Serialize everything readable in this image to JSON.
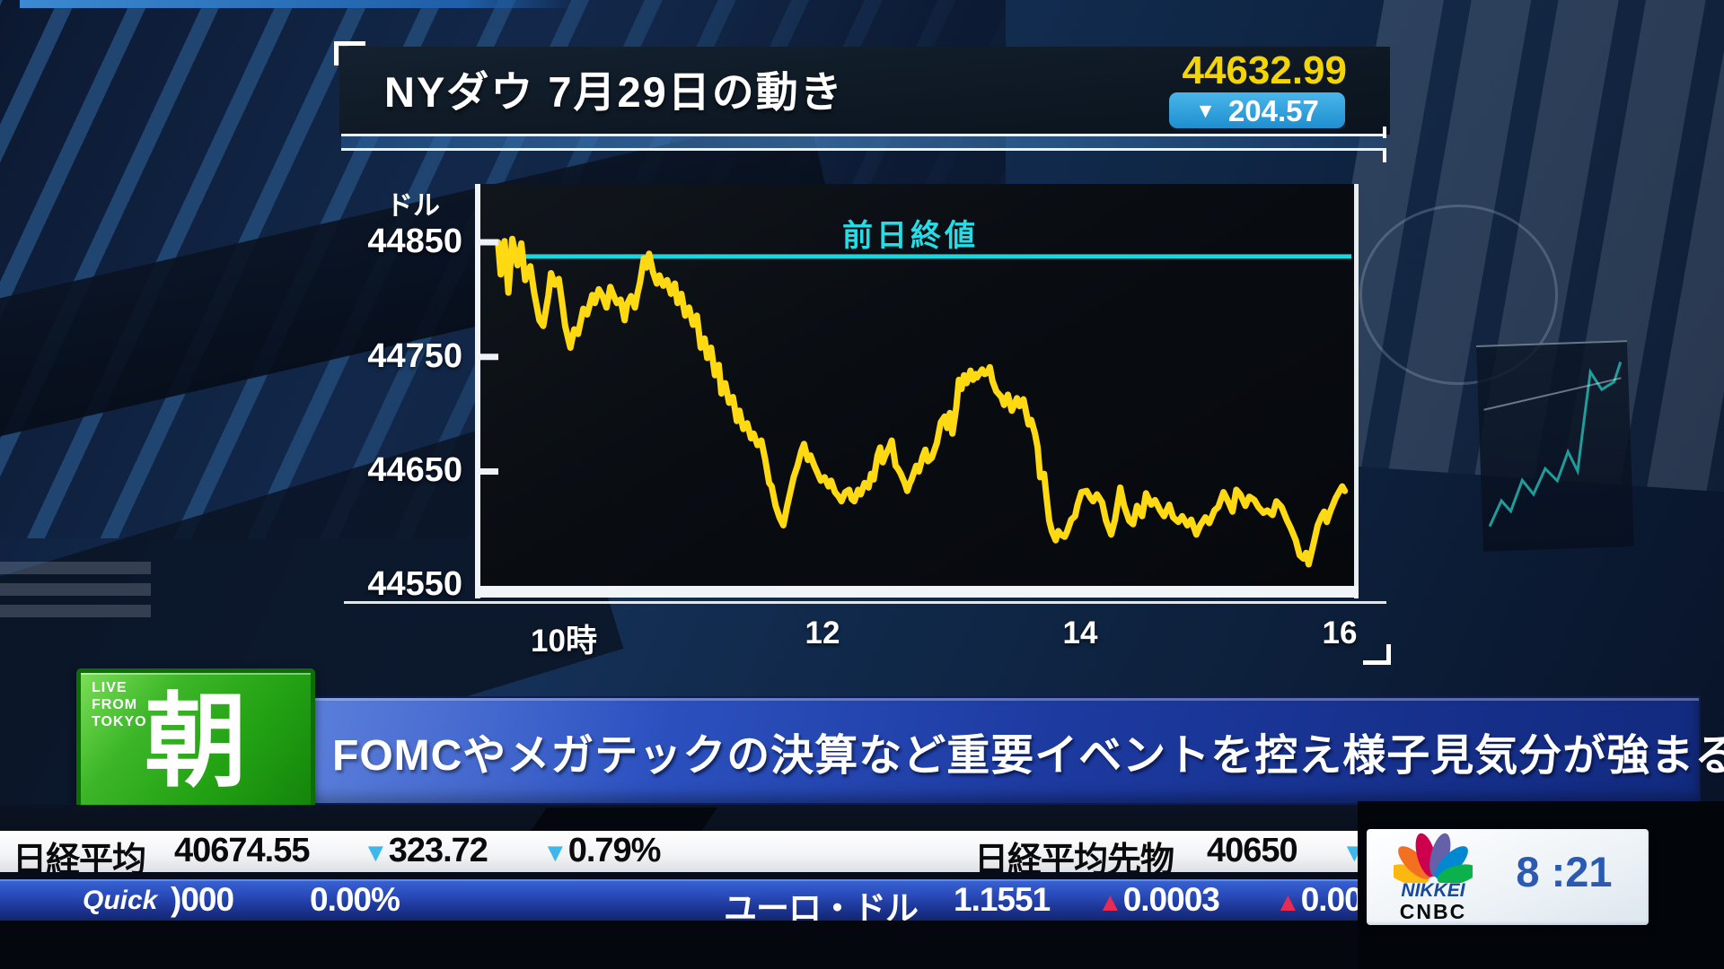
{
  "header": {
    "title": "NYダウ 7月29日の動き",
    "price": "44632.99",
    "change_arrow": "▼",
    "change_value": "204.57"
  },
  "chart": {
    "unit": "ドル",
    "prev_close_label": "前日終値",
    "y_ticks": [
      "44850",
      "44750",
      "44650",
      "44550"
    ],
    "x_ticks": [
      "10時",
      "12",
      "14",
      "16"
    ]
  },
  "chart_data": {
    "type": "line",
    "title": "NYダウ 7月29日の動き",
    "ylabel": "ドル",
    "x_unit": "hour_of_day",
    "xlim": [
      9.5,
      16.08
    ],
    "ylim": [
      44550,
      44870
    ],
    "x_tick_values": [
      10,
      12,
      14,
      16
    ],
    "x_tick_labels": [
      "10時",
      "12",
      "14",
      "16"
    ],
    "y_tick_values": [
      44850,
      44750,
      44650,
      44550
    ],
    "prev_close": 44837.56,
    "last_price": 44632.99,
    "change": -204.57,
    "grid": false,
    "series": [
      {
        "name": "NYダウ",
        "points": [
          [
            9.49,
            44850
          ],
          [
            9.51,
            44822
          ],
          [
            9.54,
            44851
          ],
          [
            9.57,
            44806
          ],
          [
            9.6,
            44853
          ],
          [
            9.64,
            44830
          ],
          [
            9.67,
            44849
          ],
          [
            9.7,
            44817
          ],
          [
            9.74,
            44829
          ],
          [
            9.77,
            44806
          ],
          [
            9.81,
            44782
          ],
          [
            9.84,
            44777
          ],
          [
            9.88,
            44804
          ],
          [
            9.9,
            44823
          ],
          [
            9.93,
            44813
          ],
          [
            9.96,
            44818
          ],
          [
            9.99,
            44794
          ],
          [
            10.01,
            44777
          ],
          [
            10.05,
            44758
          ],
          [
            10.08,
            44774
          ],
          [
            10.11,
            44770
          ],
          [
            10.15,
            44792
          ],
          [
            10.18,
            44787
          ],
          [
            10.22,
            44804
          ],
          [
            10.24,
            44797
          ],
          [
            10.27,
            44809
          ],
          [
            10.3,
            44803
          ],
          [
            10.33,
            44793
          ],
          [
            10.36,
            44811
          ],
          [
            10.38,
            44805
          ],
          [
            10.41,
            44797
          ],
          [
            10.44,
            44800
          ],
          [
            10.47,
            44782
          ],
          [
            10.49,
            44796
          ],
          [
            10.52,
            44803
          ],
          [
            10.55,
            44793
          ],
          [
            10.57,
            44805
          ],
          [
            10.59,
            44815
          ],
          [
            10.62,
            44836
          ],
          [
            10.64,
            44828
          ],
          [
            10.66,
            44840
          ],
          [
            10.69,
            44824
          ],
          [
            10.72,
            44814
          ],
          [
            10.74,
            44821
          ],
          [
            10.77,
            44812
          ],
          [
            10.8,
            44817
          ],
          [
            10.83,
            44805
          ],
          [
            10.86,
            44814
          ],
          [
            10.88,
            44797
          ],
          [
            10.91,
            44805
          ],
          [
            10.94,
            44786
          ],
          [
            10.97,
            44793
          ],
          [
            11.0,
            44778
          ],
          [
            11.03,
            44786
          ],
          [
            11.06,
            44758
          ],
          [
            11.09,
            44766
          ],
          [
            11.11,
            44749
          ],
          [
            11.14,
            44758
          ],
          [
            11.17,
            44734
          ],
          [
            11.2,
            44743
          ],
          [
            11.22,
            44718
          ],
          [
            11.25,
            44727
          ],
          [
            11.28,
            44710
          ],
          [
            11.31,
            44715
          ],
          [
            11.34,
            44694
          ],
          [
            11.36,
            44703
          ],
          [
            11.39,
            44687
          ],
          [
            11.42,
            44692
          ],
          [
            11.45,
            44679
          ],
          [
            11.47,
            44683
          ],
          [
            11.5,
            44673
          ],
          [
            11.53,
            44677
          ],
          [
            11.56,
            44660
          ],
          [
            11.59,
            44640
          ],
          [
            11.61,
            44637
          ],
          [
            11.64,
            44620
          ],
          [
            11.67,
            44610
          ],
          [
            11.7,
            44603
          ],
          [
            11.73,
            44620
          ],
          [
            11.75,
            44630
          ],
          [
            11.78,
            44645
          ],
          [
            11.81,
            44655
          ],
          [
            11.84,
            44668
          ],
          [
            11.86,
            44674
          ],
          [
            11.89,
            44660
          ],
          [
            11.91,
            44664
          ],
          [
            11.94,
            44655
          ],
          [
            11.96,
            44650
          ],
          [
            11.99,
            44642
          ],
          [
            12.02,
            44645
          ],
          [
            12.05,
            44637
          ],
          [
            12.07,
            44642
          ],
          [
            12.1,
            44632
          ],
          [
            12.13,
            44628
          ],
          [
            12.15,
            44624
          ],
          [
            12.18,
            44632
          ],
          [
            12.21,
            44634
          ],
          [
            12.23,
            44626
          ],
          [
            12.25,
            44624
          ],
          [
            12.28,
            44634
          ],
          [
            12.3,
            44630
          ],
          [
            12.33,
            44640
          ],
          [
            12.36,
            44636
          ],
          [
            12.38,
            44648
          ],
          [
            12.4,
            44643
          ],
          [
            12.43,
            44664
          ],
          [
            12.45,
            44671
          ],
          [
            12.47,
            44658
          ],
          [
            12.49,
            44664
          ],
          [
            12.52,
            44671
          ],
          [
            12.54,
            44677
          ],
          [
            12.57,
            44655
          ],
          [
            12.59,
            44652
          ],
          [
            12.61,
            44648
          ],
          [
            12.64,
            44640
          ],
          [
            12.66,
            44633
          ],
          [
            12.68,
            44640
          ],
          [
            12.69,
            44642
          ],
          [
            12.73,
            44655
          ],
          [
            12.75,
            44650
          ],
          [
            12.78,
            44663
          ],
          [
            12.8,
            44669
          ],
          [
            12.82,
            44659
          ],
          [
            12.85,
            44662
          ],
          [
            12.89,
            44675
          ],
          [
            12.92,
            44693
          ],
          [
            12.95,
            44698
          ],
          [
            12.97,
            44688
          ],
          [
            12.99,
            44701
          ],
          [
            13.01,
            44683
          ],
          [
            13.04,
            44706
          ],
          [
            13.06,
            44730
          ],
          [
            13.08,
            44722
          ],
          [
            13.1,
            44734
          ],
          [
            13.12,
            44727
          ],
          [
            13.15,
            44738
          ],
          [
            13.17,
            44730
          ],
          [
            13.19,
            44735
          ],
          [
            13.2,
            44732
          ],
          [
            13.24,
            44739
          ],
          [
            13.26,
            44735
          ],
          [
            13.28,
            44736
          ],
          [
            13.3,
            44741
          ],
          [
            13.32,
            44729
          ],
          [
            13.35,
            44720
          ],
          [
            13.39,
            44715
          ],
          [
            13.41,
            44708
          ],
          [
            13.44,
            44717
          ],
          [
            13.47,
            44703
          ],
          [
            13.51,
            44714
          ],
          [
            13.53,
            44707
          ],
          [
            13.56,
            44713
          ],
          [
            13.6,
            44691
          ],
          [
            13.62,
            44695
          ],
          [
            13.65,
            44683
          ],
          [
            13.67,
            44671
          ],
          [
            13.69,
            44645
          ],
          [
            13.72,
            44648
          ],
          [
            13.74,
            44627
          ],
          [
            13.76,
            44607
          ],
          [
            13.78,
            44598
          ],
          [
            13.81,
            44590
          ],
          [
            13.83,
            44598
          ],
          [
            13.85,
            44595
          ],
          [
            13.88,
            44593
          ],
          [
            13.9,
            44598
          ],
          [
            13.93,
            44608
          ],
          [
            13.96,
            44611
          ],
          [
            13.98,
            44621
          ],
          [
            14.01,
            44632
          ],
          [
            14.05,
            44633
          ],
          [
            14.08,
            44627
          ],
          [
            14.1,
            44624
          ],
          [
            14.13,
            44630
          ],
          [
            14.17,
            44623
          ],
          [
            14.2,
            44607
          ],
          [
            14.24,
            44595
          ],
          [
            14.27,
            44608
          ],
          [
            14.31,
            44636
          ],
          [
            14.34,
            44620
          ],
          [
            14.38,
            44607
          ],
          [
            14.41,
            44604
          ],
          [
            14.44,
            44620
          ],
          [
            14.48,
            44611
          ],
          [
            14.51,
            44631
          ],
          [
            14.55,
            44621
          ],
          [
            14.58,
            44625
          ],
          [
            14.62,
            44616
          ],
          [
            14.65,
            44611
          ],
          [
            14.69,
            44621
          ],
          [
            14.72,
            44610
          ],
          [
            14.76,
            44606
          ],
          [
            14.79,
            44611
          ],
          [
            14.83,
            44603
          ],
          [
            14.86,
            44608
          ],
          [
            14.9,
            44595
          ],
          [
            14.93,
            44603
          ],
          [
            14.97,
            44610
          ],
          [
            15.0,
            44605
          ],
          [
            15.04,
            44616
          ],
          [
            15.07,
            44619
          ],
          [
            15.11,
            44632
          ],
          [
            15.15,
            44623
          ],
          [
            15.18,
            44615
          ],
          [
            15.21,
            44634
          ],
          [
            15.24,
            44630
          ],
          [
            15.28,
            44620
          ],
          [
            15.31,
            44628
          ],
          [
            15.35,
            44625
          ],
          [
            15.38,
            44619
          ],
          [
            15.42,
            44614
          ],
          [
            15.45,
            44616
          ],
          [
            15.49,
            44612
          ],
          [
            15.52,
            44624
          ],
          [
            15.56,
            44619
          ],
          [
            15.6,
            44608
          ],
          [
            15.63,
            44601
          ],
          [
            15.67,
            44590
          ],
          [
            15.7,
            44577
          ],
          [
            15.73,
            44574
          ],
          [
            15.75,
            44579
          ],
          [
            15.77,
            44569
          ],
          [
            15.81,
            44588
          ],
          [
            15.84,
            44603
          ],
          [
            15.87,
            44611
          ],
          [
            15.89,
            44615
          ],
          [
            15.91,
            44606
          ],
          [
            15.94,
            44616
          ],
          [
            15.98,
            44627
          ],
          [
            16.01,
            44633
          ],
          [
            16.03,
            44637
          ],
          [
            16.05,
            44633
          ]
        ]
      }
    ],
    "annotations": [
      {
        "label": "前日終値",
        "value": 44837.56,
        "color": "#17d7e0"
      }
    ],
    "line_color": "#ffd912"
  },
  "program_badge": {
    "live_text": "LIVE\nFROM\nTOKYO",
    "kanji": "朝"
  },
  "headline": {
    "text": "FOMCやメガテックの決算など重要イベントを控え様子見気分が強まる"
  },
  "ticker": {
    "row1": {
      "nikkei_label": "日経平均",
      "nikkei_value": "40674.55",
      "down_arrow": "▼",
      "nikkei_change": "323.72",
      "nikkei_change_pct": "0.79%",
      "futures_label": "日経平均先物",
      "futures_value": "40650"
    },
    "row2": {
      "quick_logo": "Quick",
      "scroll_value": ")000",
      "scroll_pct": "0.00%",
      "up_arrow": "▲",
      "eurusd_label": "ユーロ・ドル",
      "eurusd_value": "1.1551",
      "eurusd_change": "0.0003",
      "eurusd_change_partial": "0.00"
    }
  },
  "station": {
    "network_top": "NIKKEI",
    "network_bottom": "CNBC",
    "clock": "8 :21"
  },
  "colors": {
    "price_yellow": "#f3d406",
    "badge_blue": "#2aa2dd",
    "line_yellow": "#ffd912",
    "prev_close_cyan": "#17d7e0",
    "down_arrow_blue": "#3fb7ea",
    "up_arrow_red": "#ea2a50",
    "headline_blue": "#1d3aa0",
    "live_green": "#23a214"
  }
}
